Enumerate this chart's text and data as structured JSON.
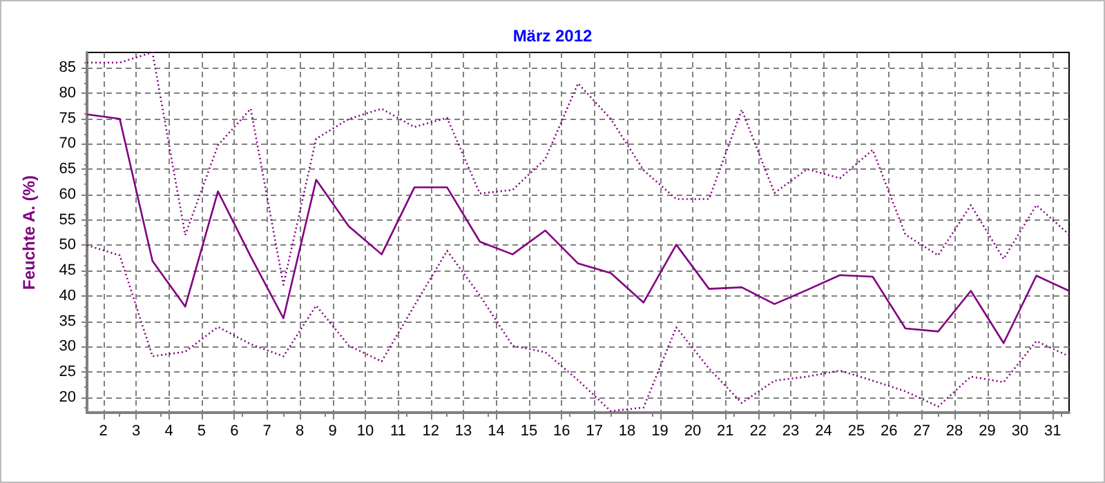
{
  "chart_data": {
    "type": "line",
    "title": "März 2012",
    "ylabel": "Feuchte A. (%)",
    "x": [
      1.5,
      2.5,
      3.5,
      4.5,
      5.5,
      6.5,
      7.5,
      8.5,
      9.5,
      10.5,
      11.5,
      12.5,
      13.5,
      14.5,
      15.5,
      16.5,
      17.5,
      18.5,
      19.5,
      20.5,
      21.5,
      22.5,
      23.5,
      24.5,
      25.5,
      26.5,
      27.5,
      28.5,
      29.5,
      30.5,
      31.5
    ],
    "series": [
      {
        "color": "#800080",
        "line_style": "dotted",
        "values": [
          86,
          86,
          88,
          52,
          69.7,
          76.9,
          42.2,
          71,
          74.9,
          76.9,
          73.3,
          75.1,
          60.2,
          60.9,
          67,
          81.9,
          74.9,
          64.8,
          59.1,
          59.1,
          76.7,
          60.3,
          65,
          63.2,
          68.8,
          52.1,
          48,
          57.9,
          47.3,
          57.9,
          52.1
        ]
      },
      {
        "color": "#800080",
        "line_style": "solid",
        "values": [
          75.8,
          74.9,
          46.9,
          37.9,
          60.6,
          47.8,
          35.6,
          62.9,
          53.7,
          48.2,
          61.4,
          61.4,
          50.7,
          48.2,
          52.9,
          46.4,
          44.5,
          38.7,
          50.1,
          41.4,
          41.7,
          38.4,
          41.2,
          44.1,
          43.8,
          33.6,
          33,
          41,
          30.7,
          44,
          41
        ]
      },
      {
        "color": "#800080",
        "line_style": "dotted",
        "values": [
          50,
          48,
          28.1,
          29,
          33.9,
          30.5,
          28.1,
          38.1,
          30.2,
          27.1,
          38.1,
          48.9,
          40.1,
          30.2,
          28.9,
          23.4,
          17.3,
          18,
          33.8,
          25.7,
          18.9,
          23.3,
          24.1,
          25.3,
          23.3,
          21.2,
          18.2,
          24.1,
          23,
          31.1,
          28.1
        ]
      }
    ],
    "xlim": [
      1.5,
      31.5
    ],
    "xticks": [
      2,
      3,
      4,
      5,
      6,
      7,
      8,
      9,
      10,
      11,
      12,
      13,
      14,
      15,
      16,
      17,
      18,
      19,
      20,
      21,
      22,
      23,
      24,
      25,
      26,
      27,
      28,
      29,
      30,
      31
    ],
    "ylim": [
      17,
      88
    ],
    "yticks": [
      20,
      25,
      30,
      35,
      40,
      45,
      50,
      55,
      60,
      65,
      70,
      75,
      80,
      85
    ],
    "grid": true,
    "marker": "none"
  }
}
